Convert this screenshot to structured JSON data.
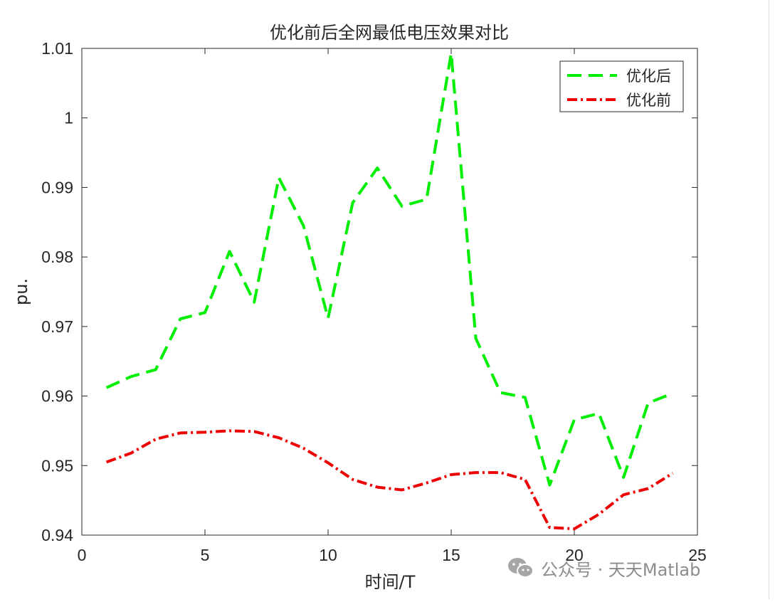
{
  "chart_data": {
    "type": "line",
    "title": "优化前后全网最低电压效果对比",
    "xlabel": "时间/T",
    "ylabel": "pu.",
    "xlim": [
      0,
      25
    ],
    "ylim": [
      0.94,
      1.01
    ],
    "xticks": [
      0,
      5,
      10,
      15,
      20,
      25
    ],
    "yticks": [
      0.94,
      0.95,
      0.96,
      0.97,
      0.98,
      0.99,
      1,
      1.01
    ],
    "xtick_labels": [
      "0",
      "5",
      "10",
      "15",
      "20",
      "25"
    ],
    "ytick_labels": [
      "0.94",
      "0.95",
      "0.96",
      "0.97",
      "0.98",
      "0.99",
      "1",
      "1.01"
    ],
    "grid": false,
    "legend_position": "top-right",
    "series": [
      {
        "name": "优化后",
        "color": "#00ee00",
        "dash": "long-dash",
        "x": [
          1,
          2,
          3,
          4,
          5,
          6,
          7,
          8,
          9,
          10,
          11,
          12,
          13,
          14,
          15,
          16,
          17,
          18,
          19,
          20,
          21,
          22,
          23,
          24
        ],
        "y": [
          0.9612,
          0.9628,
          0.9638,
          0.9711,
          0.972,
          0.9808,
          0.9735,
          0.9914,
          0.9845,
          0.9712,
          0.9878,
          0.9928,
          0.9873,
          0.9883,
          1.0093,
          0.9683,
          0.9605,
          0.9598,
          0.9472,
          0.9566,
          0.9575,
          0.9483,
          0.959,
          0.9604
        ]
      },
      {
        "name": "优化前",
        "color": "#ee0000",
        "dash": "dash-dot",
        "x": [
          1,
          2,
          3,
          4,
          5,
          6,
          7,
          8,
          9,
          10,
          11,
          12,
          13,
          14,
          15,
          16,
          17,
          18,
          19,
          20,
          21,
          22,
          23,
          24
        ],
        "y": [
          0.9505,
          0.9518,
          0.9538,
          0.9547,
          0.9548,
          0.955,
          0.9549,
          0.954,
          0.9525,
          0.9504,
          0.948,
          0.9469,
          0.9465,
          0.9475,
          0.9487,
          0.949,
          0.949,
          0.948,
          0.9411,
          0.9409,
          0.943,
          0.9458,
          0.9467,
          0.9489
        ]
      }
    ]
  },
  "watermark": {
    "text": "公众号 · 天天Matlab",
    "icon": "wechat-icon"
  }
}
